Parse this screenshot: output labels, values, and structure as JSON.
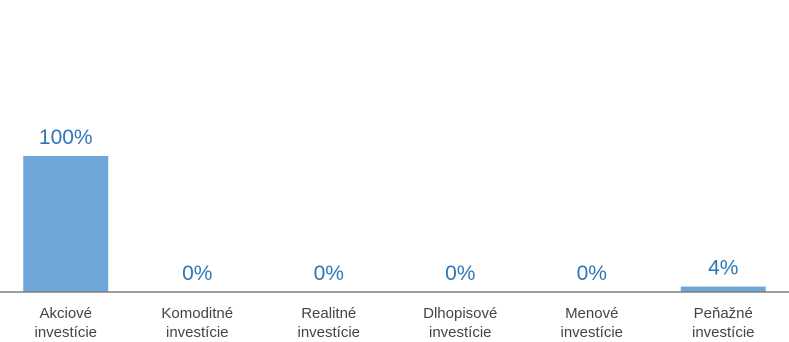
{
  "chart_data": {
    "type": "bar",
    "categories": [
      [
        "Akciové",
        "investície"
      ],
      [
        "Komoditné",
        "investície"
      ],
      [
        "Realitné",
        "investície"
      ],
      [
        "Dlhopisové",
        "investície"
      ],
      [
        "Menové",
        "investície"
      ],
      [
        "Peňažné",
        "investície"
      ]
    ],
    "values": [
      100,
      0,
      0,
      0,
      0,
      4
    ],
    "value_labels": [
      "100%",
      "0%",
      "0%",
      "0%",
      "0%",
      "4%"
    ],
    "ylim": [
      0,
      100
    ],
    "grid": false,
    "legend": "none",
    "colors": {
      "bar": "#6fa6d8",
      "value_text": "#2e78b8",
      "axis": "#7f7f7f",
      "category_text": "#444444"
    }
  }
}
